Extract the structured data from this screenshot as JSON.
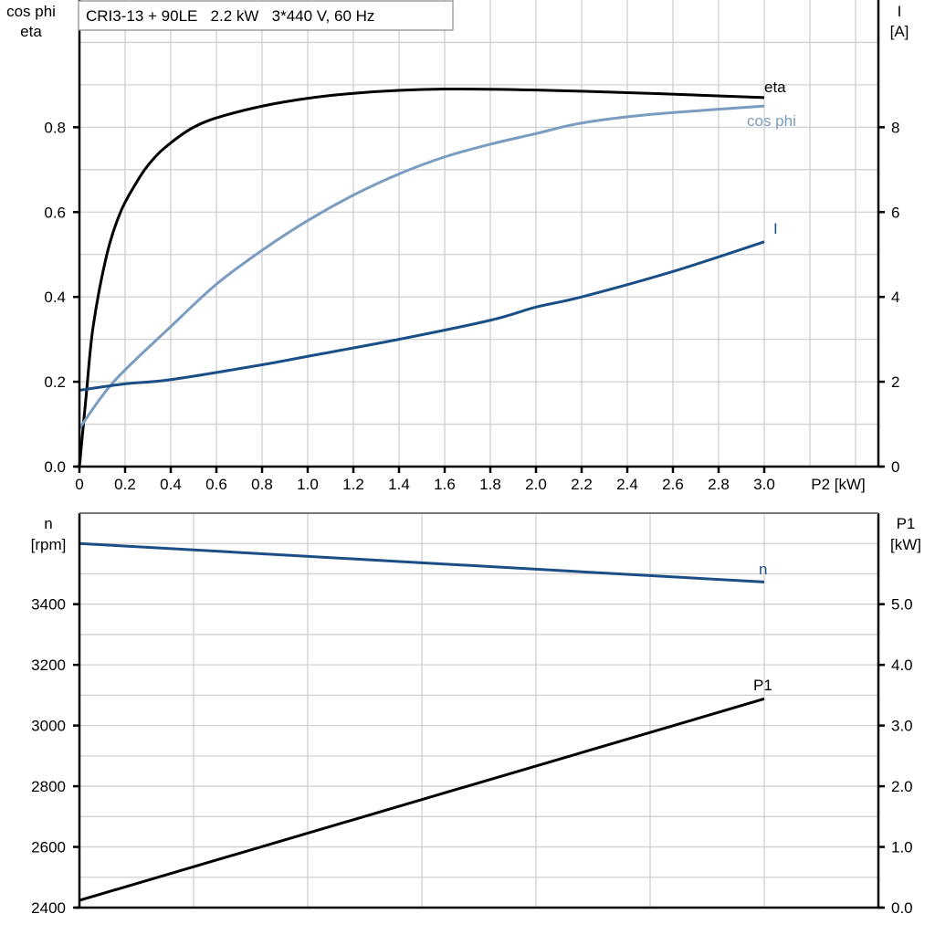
{
  "colors": {
    "eta": "#000000",
    "cos_phi": "#7a9cc0",
    "I": "#1a4f86",
    "n": "#1a4f86",
    "P1": "#000000"
  },
  "chart_data": [
    {
      "type": "line",
      "title": "CRI3-13 + 90LE   2.2 kW   3*440 V, 60 Hz",
      "xlabel": "P2 [kW]",
      "ylabel_left": [
        "cos phi",
        "eta"
      ],
      "ylabel_right": [
        "I",
        "[A]"
      ],
      "xlim": [
        0,
        3.5
      ],
      "ylim_left": [
        0,
        1.1
      ],
      "ylim_right": [
        0,
        11
      ],
      "grid": true,
      "x_ticks": [
        "0",
        "0.2",
        "0.4",
        "0.6",
        "0.8",
        "1.0",
        "1.2",
        "1.4",
        "1.6",
        "1.8",
        "2.0",
        "2.2",
        "2.4",
        "2.6",
        "2.8",
        "3.0"
      ],
      "y_ticks_left": [
        "0.0",
        "0.2",
        "0.4",
        "0.6",
        "0.8"
      ],
      "y_ticks_right": [
        "0",
        "2",
        "4",
        "6",
        "8"
      ],
      "series": [
        {
          "name": "eta",
          "axis": "left",
          "color_key": "eta",
          "x": [
            0,
            0.03,
            0.06,
            0.12,
            0.18,
            0.25,
            0.3,
            0.37,
            0.5,
            0.65,
            0.9,
            1.2,
            1.6,
            2.2,
            3.0
          ],
          "y": [
            0,
            0.17,
            0.33,
            0.5,
            0.6,
            0.67,
            0.71,
            0.75,
            0.8,
            0.83,
            0.86,
            0.88,
            0.89,
            0.885,
            0.87
          ]
        },
        {
          "name": "cos phi",
          "axis": "left",
          "color_key": "cos_phi",
          "x": [
            0,
            0.15,
            0.4,
            0.6,
            0.8,
            1.0,
            1.2,
            1.4,
            1.6,
            1.8,
            2.0,
            2.2,
            2.5,
            3.0
          ],
          "y": [
            0.09,
            0.2,
            0.33,
            0.43,
            0.51,
            0.58,
            0.64,
            0.69,
            0.73,
            0.76,
            0.785,
            0.81,
            0.83,
            0.85
          ]
        },
        {
          "name": "I",
          "axis": "right",
          "color_key": "I",
          "x": [
            0,
            0.2,
            0.4,
            0.8,
            1.0,
            1.4,
            1.8,
            2.0,
            2.2,
            2.6,
            3.0
          ],
          "y": [
            1.8,
            1.95,
            2.05,
            2.4,
            2.6,
            3.0,
            3.45,
            3.76,
            4.0,
            4.6,
            5.3
          ]
        }
      ]
    },
    {
      "type": "line",
      "xlim": [
        0,
        3.5
      ],
      "ylabel_left": [
        "n",
        "[rpm]"
      ],
      "ylabel_right": [
        "P1",
        "[kW]"
      ],
      "ylim_left": [
        2400,
        3700
      ],
      "ylim_right": [
        0,
        6.5
      ],
      "grid": true,
      "y_ticks_left": [
        "2400",
        "2600",
        "2800",
        "3000",
        "3200",
        "3400"
      ],
      "y_ticks_right": [
        "0.0",
        "1.0",
        "2.0",
        "3.0",
        "4.0",
        "5.0"
      ],
      "series": [
        {
          "name": "n",
          "axis": "left",
          "color_key": "n",
          "x": [
            0,
            3.0
          ],
          "y": [
            3600,
            3473
          ]
        },
        {
          "name": "P1",
          "axis": "right",
          "color_key": "P1",
          "x": [
            0,
            3.0
          ],
          "y": [
            0.12,
            3.44
          ]
        }
      ]
    }
  ]
}
